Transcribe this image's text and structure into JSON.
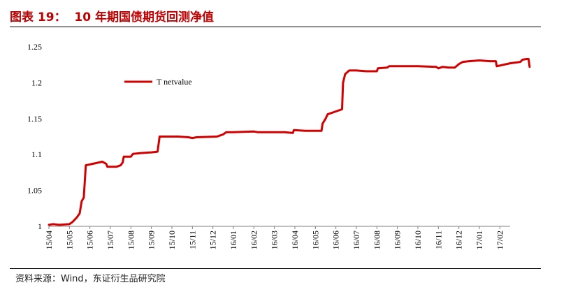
{
  "figure": {
    "title": "图表 19：  10 年期国债期货回测净值",
    "source": "资料来源：Wind，东证衍生品研究院"
  },
  "chart_data": {
    "type": "line",
    "title": "",
    "xlabel": "",
    "ylabel": "",
    "ylim": [
      1,
      1.25
    ],
    "yticks": [
      "1",
      "1.05",
      "1.1",
      "1.15",
      "1.2",
      "1.25"
    ],
    "categories": [
      "15/04",
      "15/05",
      "15/06",
      "15/07",
      "15/08",
      "15/09",
      "15/10",
      "15/11",
      "15/12",
      "16/01",
      "16/02",
      "16/03",
      "16/04",
      "16/05",
      "16/06",
      "16/07",
      "16/08",
      "16/09",
      "16/10",
      "16/11",
      "16/12",
      "17/01",
      "17/02"
    ],
    "legend": {
      "position": "top-left"
    },
    "colors": {
      "series": "#d40000",
      "axis": "#808080"
    },
    "series": [
      {
        "name": "T netvalue",
        "points": [
          [
            0.0,
            1.002
          ],
          [
            0.2,
            1.003
          ],
          [
            0.5,
            1.002
          ],
          [
            1.0,
            1.003
          ],
          [
            1.15,
            1.006
          ],
          [
            1.35,
            1.012
          ],
          [
            1.5,
            1.018
          ],
          [
            1.6,
            1.035
          ],
          [
            1.7,
            1.04
          ],
          [
            1.75,
            1.062
          ],
          [
            1.8,
            1.085
          ],
          [
            2.3,
            1.088
          ],
          [
            2.6,
            1.09
          ],
          [
            2.8,
            1.087
          ],
          [
            2.85,
            1.083
          ],
          [
            3.0,
            1.083
          ],
          [
            3.3,
            1.083
          ],
          [
            3.5,
            1.085
          ],
          [
            3.6,
            1.089
          ],
          [
            3.65,
            1.097
          ],
          [
            4.0,
            1.097
          ],
          [
            4.1,
            1.101
          ],
          [
            4.5,
            1.102
          ],
          [
            5.0,
            1.103
          ],
          [
            5.3,
            1.104
          ],
          [
            5.4,
            1.125
          ],
          [
            5.8,
            1.125
          ],
          [
            6.3,
            1.125
          ],
          [
            6.8,
            1.124
          ],
          [
            7.0,
            1.123
          ],
          [
            7.2,
            1.124
          ],
          [
            8.2,
            1.125
          ],
          [
            8.5,
            1.128
          ],
          [
            8.65,
            1.131
          ],
          [
            9.0,
            1.131
          ],
          [
            10.0,
            1.132
          ],
          [
            10.2,
            1.131
          ],
          [
            11.0,
            1.131
          ],
          [
            11.5,
            1.131
          ],
          [
            11.9,
            1.13
          ],
          [
            11.95,
            1.134
          ],
          [
            12.5,
            1.133
          ],
          [
            13.0,
            1.133
          ],
          [
            13.3,
            1.133
          ],
          [
            13.35,
            1.143
          ],
          [
            13.5,
            1.15
          ],
          [
            13.6,
            1.156
          ],
          [
            13.8,
            1.158
          ],
          [
            14.0,
            1.16
          ],
          [
            14.2,
            1.162
          ],
          [
            14.3,
            1.163
          ],
          [
            14.35,
            1.2
          ],
          [
            14.45,
            1.212
          ],
          [
            14.65,
            1.217
          ],
          [
            15.0,
            1.217
          ],
          [
            15.5,
            1.216
          ],
          [
            16.0,
            1.216
          ],
          [
            16.05,
            1.22
          ],
          [
            16.5,
            1.221
          ],
          [
            16.6,
            1.223
          ],
          [
            17.0,
            1.223
          ],
          [
            18.0,
            1.223
          ],
          [
            18.9,
            1.222
          ],
          [
            19.0,
            1.22
          ],
          [
            19.2,
            1.222
          ],
          [
            19.5,
            1.221
          ],
          [
            19.8,
            1.221
          ],
          [
            20.0,
            1.226
          ],
          [
            20.2,
            1.229
          ],
          [
            20.5,
            1.23
          ],
          [
            21.0,
            1.231
          ],
          [
            21.5,
            1.23
          ],
          [
            21.8,
            1.23
          ],
          [
            21.85,
            1.223
          ],
          [
            22.5,
            1.227
          ],
          [
            23.0,
            1.229
          ],
          [
            23.1,
            1.232
          ],
          [
            23.3,
            1.233
          ],
          [
            23.4,
            1.233
          ],
          [
            23.45,
            1.222
          ]
        ]
      }
    ]
  }
}
